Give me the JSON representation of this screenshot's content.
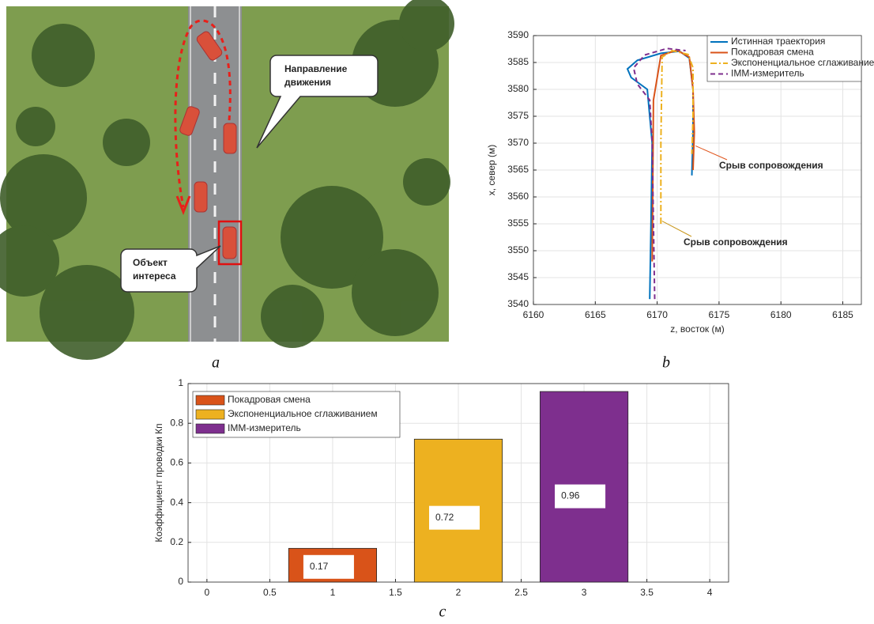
{
  "image_panel": {
    "panel_label": "a",
    "callouts": [
      "Направление движения",
      "Объект интереса"
    ]
  },
  "chart_data": [
    {
      "type": "line",
      "panel_label": "b",
      "x_label": "z, восток (м)",
      "y_label": "x, север (м)",
      "xlim": [
        6160,
        6186.5
      ],
      "ylim": [
        3540,
        3590
      ],
      "xticks": [
        6160,
        6165,
        6170,
        6175,
        6180,
        6185
      ],
      "yticks": [
        3540,
        3545,
        3550,
        3555,
        3560,
        3565,
        3570,
        3575,
        3580,
        3585,
        3590
      ],
      "grid": true,
      "legend": "top-right",
      "series": [
        {
          "name": "Истинная траектория",
          "color": "#0072bd",
          "dash": "solid",
          "x": [
            6169.4,
            6169.5,
            6169.6,
            6169.2,
            6167.9,
            6167.6,
            6168.4,
            6170.3,
            6171.8,
            6172.6,
            6172.9,
            6172.9,
            6172.8
          ],
          "values": [
            3541,
            3555,
            3570,
            3580,
            3582.2,
            3583.8,
            3585.4,
            3586.7,
            3587.1,
            3585.8,
            3580,
            3572,
            3564
          ]
        },
        {
          "name": "Покадровая смена",
          "color": "#d95319",
          "dash": "solid",
          "x": [
            6169.6,
            6169.7,
            6170.3,
            6171.6,
            6172.6,
            6172.9,
            6173.0,
            6172.9
          ],
          "values": [
            3548,
            3578,
            3586.3,
            3587.3,
            3586,
            3580,
            3572,
            3565
          ]
        },
        {
          "name": "Экспоненциальное сглаживание",
          "color": "#edb120",
          "dash": "dashdot",
          "x": [
            6170.3,
            6170.3,
            6170.4,
            6171.2,
            6172.5,
            6172.9,
            6172.9,
            6172.8
          ],
          "values": [
            3555,
            3570,
            3586,
            3587.2,
            3586.5,
            3584,
            3575,
            3568
          ]
        },
        {
          "name": "IMM-измеритель",
          "color": "#7e2f8e",
          "dash": "dashed",
          "x": [
            6169.8,
            6169.7,
            6169.6,
            6169.4,
            6168.4,
            6168.1,
            6169.0,
            6170.8,
            6172.3
          ],
          "values": [
            3541,
            3555,
            3570,
            3578,
            3581,
            3584,
            3586.4,
            3587.6,
            3587.2
          ]
        }
      ],
      "annotations": [
        {
          "text": "Срыв сопровождения",
          "color": "#e0561e"
        },
        {
          "text": "Срыв сопровождения",
          "color": "#c8961a"
        }
      ]
    },
    {
      "type": "bar",
      "panel_label": "c",
      "y_label": "Коэффициент проводки Кп",
      "xlim": [
        -0.15,
        4.15
      ],
      "ylim": [
        0,
        1
      ],
      "xticks": [
        0,
        0.5,
        1,
        1.5,
        2,
        2.5,
        3,
        3.5,
        4
      ],
      "yticks": [
        0,
        0.2,
        0.4,
        0.6,
        0.8,
        1
      ],
      "grid": true,
      "legend": "top-left",
      "bar_width": 0.7,
      "series": [
        {
          "name": "Покадровая смена",
          "color": "#d95319",
          "x": [
            1
          ],
          "values": [
            0.17
          ]
        },
        {
          "name": "Экспоненциальное сглаживанием",
          "color": "#edb120",
          "x": [
            2
          ],
          "values": [
            0.72
          ]
        },
        {
          "name": "IMM-измеритель",
          "color": "#7e2f8e",
          "x": [
            3
          ],
          "values": [
            0.96
          ]
        }
      ]
    }
  ]
}
